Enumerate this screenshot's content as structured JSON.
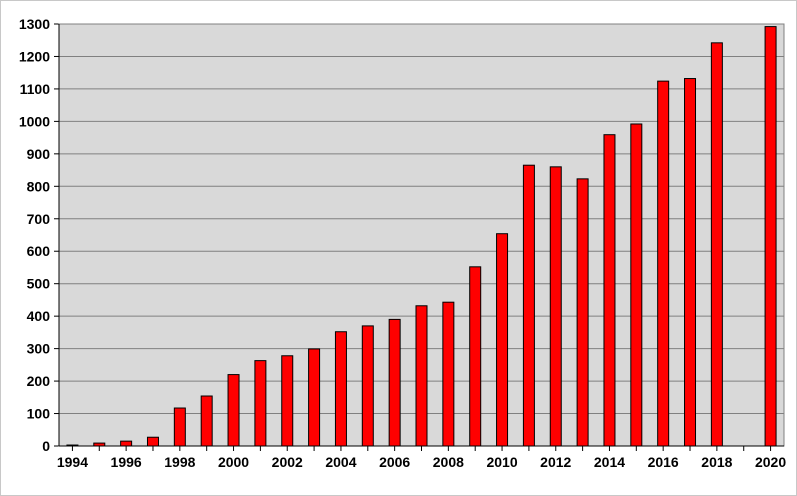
{
  "chart_data": {
    "type": "bar",
    "title": "",
    "xlabel": "",
    "ylabel": "",
    "categories": [
      "1994",
      "1995",
      "1996",
      "1997",
      "1998",
      "1999",
      "2000",
      "2001",
      "2002",
      "2003",
      "2004",
      "2005",
      "2006",
      "2007",
      "2008",
      "2009",
      "2010",
      "2011",
      "2012",
      "2013",
      "2014",
      "2015",
      "2016",
      "2017",
      "2018",
      "2019",
      "2020"
    ],
    "values": [
      3,
      9,
      15,
      27,
      117,
      154,
      220,
      263,
      278,
      299,
      352,
      370,
      390,
      432,
      443,
      552,
      654,
      865,
      860,
      823,
      959,
      992,
      1124,
      1132,
      1242,
      null,
      1292
    ],
    "x_tick_labels": [
      "1994",
      "1996",
      "1998",
      "2000",
      "2002",
      "2004",
      "2006",
      "2008",
      "2010",
      "2012",
      "2014",
      "2016",
      "2018",
      "2020"
    ],
    "y_tick_labels": [
      "0",
      "100",
      "200",
      "300",
      "400",
      "500",
      "600",
      "700",
      "800",
      "900",
      "1000",
      "1100",
      "1200",
      "1300"
    ],
    "ylim": [
      0,
      1300
    ],
    "y_tick_step": 100,
    "grid": true,
    "legend": "none",
    "colors": {
      "bar_fill": "#ff0000",
      "bar_stroke": "#000000",
      "plot_background": "#d9d9d9",
      "gridline": "#808080",
      "axis": "#000000"
    }
  }
}
